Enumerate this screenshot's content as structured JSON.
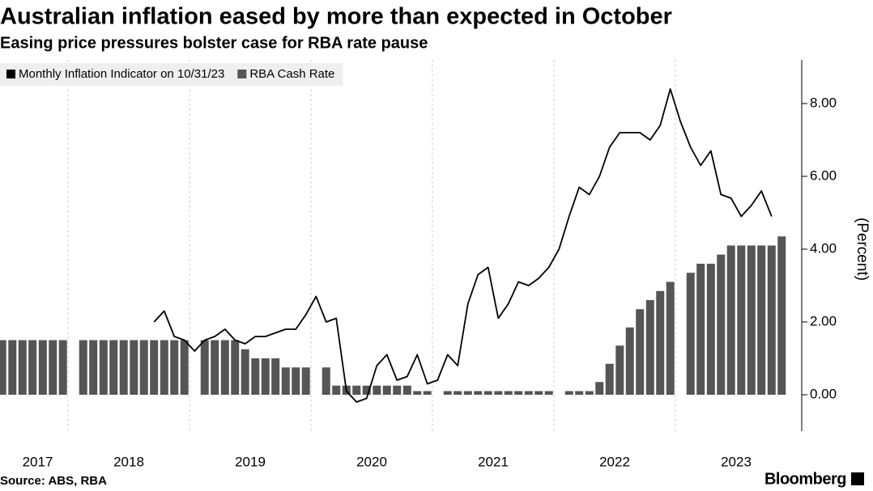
{
  "chart_data": {
    "type": "combo",
    "title": "Australian inflation eased by more than expected in October",
    "subtitle": "Easing price pressures bolster case for RBA rate pause",
    "source": "Source: ABS, RBA",
    "brand": "Bloomberg",
    "ylabel": "(Percent)",
    "x": [
      2017.458,
      2017.542,
      2017.625,
      2017.708,
      2017.792,
      2017.875,
      2017.958,
      2018.042,
      2018.125,
      2018.208,
      2018.292,
      2018.375,
      2018.458,
      2018.542,
      2018.625,
      2018.708,
      2018.792,
      2018.875,
      2018.958,
      2019.042,
      2019.125,
      2019.208,
      2019.292,
      2019.375,
      2019.458,
      2019.542,
      2019.625,
      2019.708,
      2019.792,
      2019.875,
      2019.958,
      2020.042,
      2020.125,
      2020.208,
      2020.292,
      2020.375,
      2020.458,
      2020.542,
      2020.625,
      2020.708,
      2020.792,
      2020.875,
      2020.958,
      2021.042,
      2021.125,
      2021.208,
      2021.292,
      2021.375,
      2021.458,
      2021.542,
      2021.625,
      2021.708,
      2021.792,
      2021.875,
      2021.958,
      2022.042,
      2022.125,
      2022.208,
      2022.292,
      2022.375,
      2022.458,
      2022.542,
      2022.625,
      2022.708,
      2022.792,
      2022.875,
      2022.958,
      2023.042,
      2023.125,
      2023.208,
      2023.292,
      2023.375,
      2023.458,
      2023.542,
      2023.625,
      2023.708,
      2023.792,
      2023.875
    ],
    "series": [
      {
        "name": "Monthly Inflation Indicator on 10/31/23",
        "type": "line",
        "color": "#000000",
        "values": [
          null,
          null,
          null,
          null,
          null,
          null,
          null,
          null,
          null,
          null,
          null,
          null,
          null,
          null,
          null,
          2.0,
          2.3,
          1.6,
          1.5,
          1.2,
          1.5,
          1.6,
          1.8,
          1.5,
          1.4,
          1.6,
          1.6,
          1.7,
          1.8,
          1.8,
          2.2,
          2.7,
          2.0,
          2.1,
          0.1,
          -0.2,
          -0.1,
          0.8,
          1.1,
          0.4,
          0.5,
          1.1,
          0.3,
          0.4,
          1.1,
          0.8,
          2.5,
          3.3,
          3.5,
          2.1,
          2.5,
          3.1,
          3.0,
          3.2,
          3.5,
          4.0,
          4.9,
          5.7,
          5.5,
          6.0,
          6.8,
          7.2,
          7.2,
          7.2,
          7.0,
          7.4,
          8.4,
          7.5,
          6.8,
          6.3,
          6.7,
          5.5,
          5.4,
          4.9,
          5.2,
          5.6,
          4.9,
          null
        ]
      },
      {
        "name": "RBA Cash Rate",
        "type": "bar",
        "color": "#555555",
        "values": [
          1.5,
          1.5,
          1.5,
          1.5,
          1.5,
          1.5,
          1.5,
          null,
          1.5,
          1.5,
          1.5,
          1.5,
          1.5,
          1.5,
          1.5,
          1.5,
          1.5,
          1.5,
          1.5,
          null,
          1.5,
          1.5,
          1.5,
          1.5,
          1.25,
          1,
          1,
          1,
          0.75,
          0.75,
          0.75,
          null,
          0.75,
          0.25,
          0.25,
          0.25,
          0.25,
          0.25,
          0.25,
          0.25,
          0.25,
          0.1,
          0.1,
          null,
          0.1,
          0.1,
          0.1,
          0.1,
          0.1,
          0.1,
          0.1,
          0.1,
          0.1,
          0.1,
          0.1,
          null,
          0.1,
          0.1,
          0.1,
          0.35,
          0.85,
          1.35,
          1.85,
          2.35,
          2.6,
          2.85,
          3.1,
          null,
          3.35,
          3.6,
          3.6,
          3.85,
          4.1,
          4.1,
          4.1,
          4.1,
          4.1,
          4.35
        ]
      }
    ],
    "xlim": [
      2017.44,
      2024.04
    ],
    "xticks": [
      {
        "value": 2017.75,
        "label": "2017"
      },
      {
        "value": 2018.5,
        "label": "2018"
      },
      {
        "value": 2019.5,
        "label": "2019"
      },
      {
        "value": 2020.5,
        "label": "2020"
      },
      {
        "value": 2021.5,
        "label": "2021"
      },
      {
        "value": 2022.5,
        "label": "2022"
      },
      {
        "value": 2023.5,
        "label": "2023"
      }
    ],
    "xgrid": [
      2018,
      2019,
      2020,
      2021,
      2022,
      2023
    ],
    "ylim": [
      -1,
      9.2
    ],
    "yticks": [
      {
        "value": 0,
        "label": "0.00"
      },
      {
        "value": 2,
        "label": "2.00"
      },
      {
        "value": 4,
        "label": "4.00"
      },
      {
        "value": 6,
        "label": "6.00"
      },
      {
        "value": 8,
        "label": "8.00"
      }
    ],
    "legend": "top-left"
  }
}
